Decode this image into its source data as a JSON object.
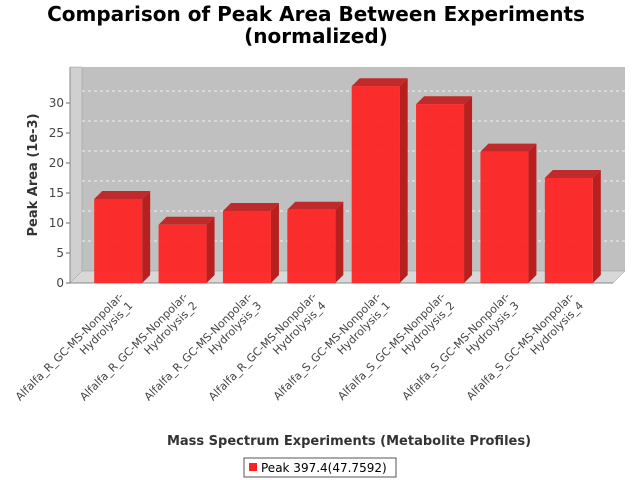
{
  "chart_data": {
    "type": "bar",
    "title_line1": "Comparison of Peak Area Between Experiments",
    "title_line2": "(normalized)",
    "xlabel": "Mass Spectrum Experiments (Metabolite Profiles)",
    "ylabel": "Peak Area (1e-3)",
    "ylim": [
      0,
      34
    ],
    "yticks": [
      "0",
      "5",
      "10",
      "15",
      "20",
      "25",
      "30"
    ],
    "categories": [
      [
        "Alfalfa_R_GC-MS-Nonpolar-",
        "Hydrolysis_1"
      ],
      [
        "Alfalfa_R_GC-MS-Nonpolar-",
        "Hydrolysis_2"
      ],
      [
        "Alfalfa_R_GC-MS-Nonpolar-",
        "Hydrolysis_3"
      ],
      [
        "Alfalfa_R_GC-MS-Nonpolar-",
        "Hydrolysis_4"
      ],
      [
        "Alfalfa_S_GC-MS-Nonpolar-",
        "Hydrolysis_1"
      ],
      [
        "Alfalfa_S_GC-MS-Nonpolar-",
        "Hydrolysis_2"
      ],
      [
        "Alfalfa_S_GC-MS-Nonpolar-",
        "Hydrolysis_3"
      ],
      [
        "Alfalfa_S_GC-MS-Nonpolar-",
        "Hydrolysis_4"
      ]
    ],
    "series": [
      {
        "name": "Peak 397.4(47.7592)",
        "color": "#ff2020",
        "values": [
          14.0,
          9.7,
          12.0,
          12.2,
          32.8,
          29.8,
          21.9,
          17.5
        ]
      }
    ],
    "grid": true,
    "legend_position": "bottom"
  }
}
